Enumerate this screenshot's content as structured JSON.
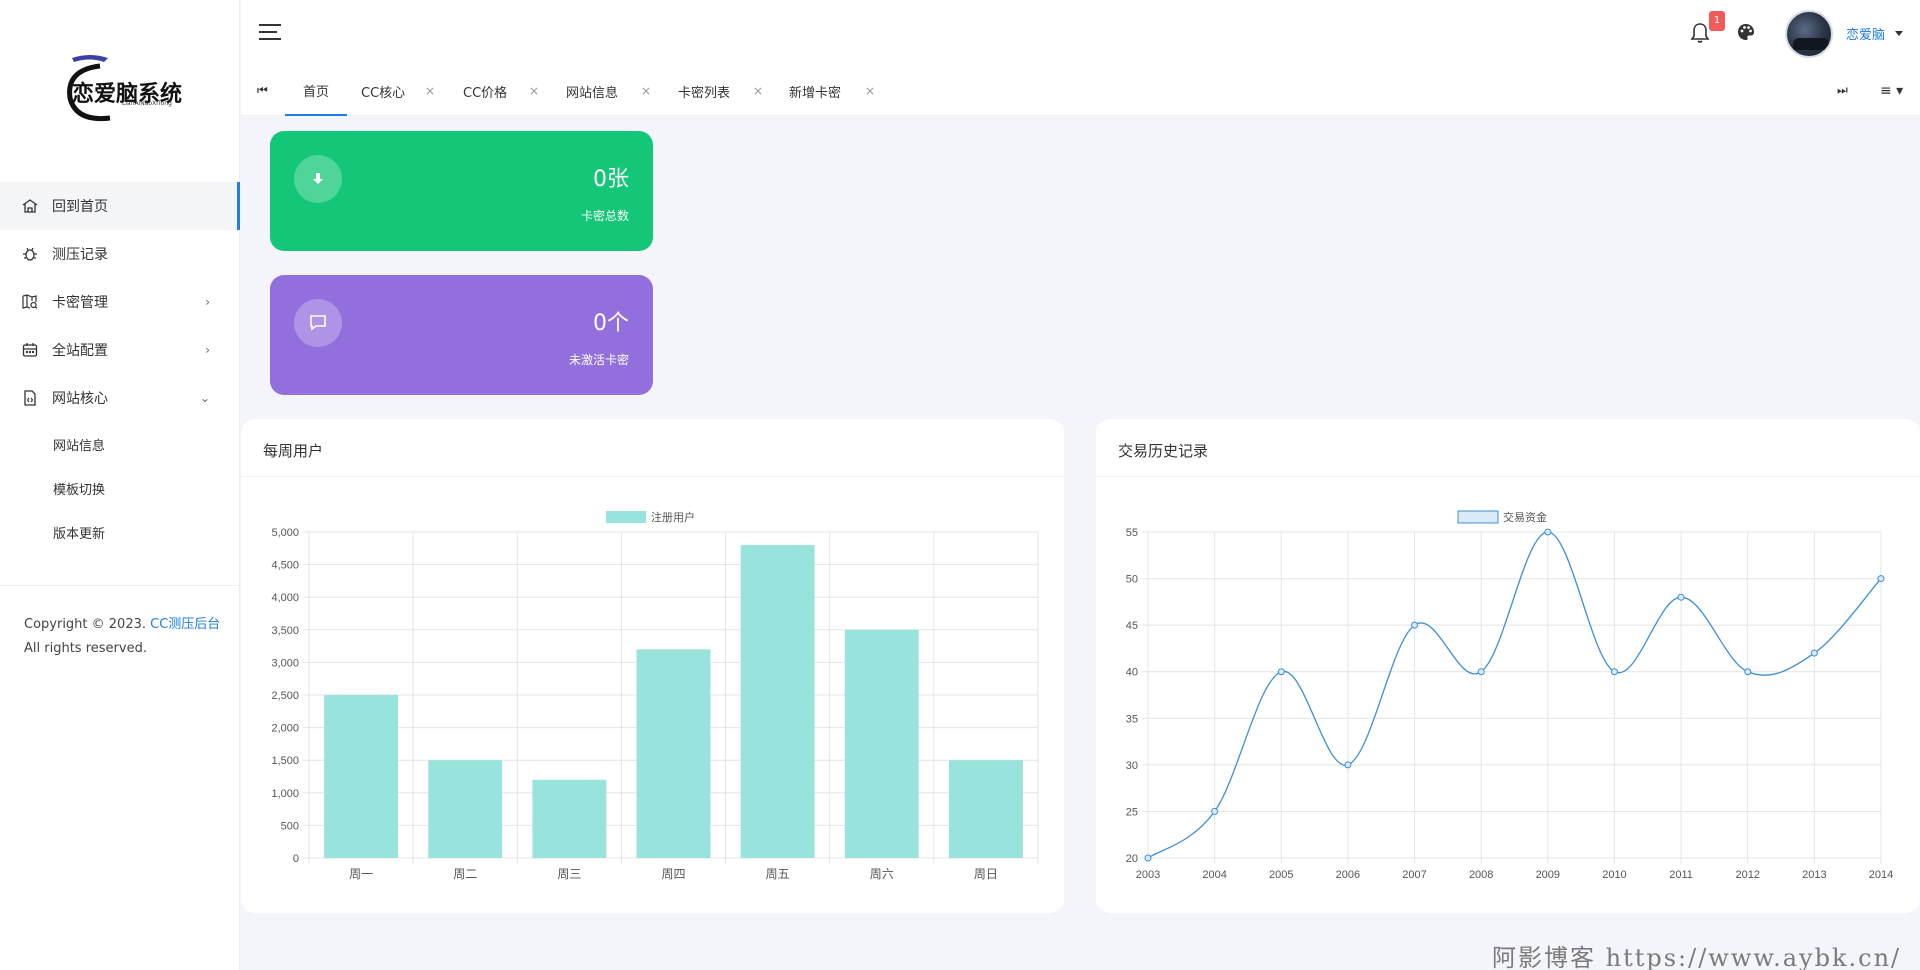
{
  "logo": {
    "text": "恋爱脑系统",
    "sub": "LianAiNaoXiTong"
  },
  "sidebar": {
    "items": [
      {
        "label": "回到首页",
        "icon": "home-icon",
        "active": true
      },
      {
        "label": "测压记录",
        "icon": "bug-icon"
      },
      {
        "label": "卡密管理",
        "icon": "map-search-icon",
        "arrow": "›"
      },
      {
        "label": "全站配置",
        "icon": "calendar-icon",
        "arrow": "›"
      },
      {
        "label": "网站核心",
        "icon": "file-code-icon",
        "arrow": "⌄"
      }
    ],
    "subitems": [
      {
        "label": "网站信息"
      },
      {
        "label": "模板切换"
      },
      {
        "label": "版本更新"
      }
    ],
    "copyright": {
      "prefix": "Copyright © 2023.",
      "link": "CC测压后台",
      "line2": "All rights reserved."
    }
  },
  "header": {
    "notification_count": "1",
    "username": "恋爱脑"
  },
  "tabs": {
    "first_btn": "⏮",
    "last_btn": "⏭",
    "menu_btn": "≡ ▾",
    "items": [
      {
        "label": "首页",
        "active": true
      },
      {
        "label": "CC核心",
        "close": "×"
      },
      {
        "label": "CC价格",
        "close": "×"
      },
      {
        "label": "网站信息",
        "close": "×"
      },
      {
        "label": "卡密列表",
        "close": "×"
      },
      {
        "label": "新增卡密",
        "close": "×"
      }
    ]
  },
  "stats": [
    {
      "value": "0张",
      "label": "卡密总数",
      "icon": "download-icon",
      "color": "#14c677"
    },
    {
      "value": "0个",
      "label": "未激活卡密",
      "icon": "message-icon",
      "color": "#936fde"
    }
  ],
  "cards": {
    "weekly_title": "每周用户",
    "history_title": "交易历史记录"
  },
  "chart_data": [
    {
      "type": "bar",
      "title": "",
      "categories": [
        "周一",
        "周二",
        "周三",
        "周四",
        "周五",
        "周六",
        "周日"
      ],
      "series": [
        {
          "name": "注册用户",
          "values": [
            2500,
            1500,
            1200,
            3200,
            4800,
            3500,
            1500
          ],
          "color": "#98e3dc"
        }
      ],
      "ylim": [
        0,
        5000
      ],
      "yticks": [
        "0",
        "500",
        "1,000",
        "1,500",
        "2,000",
        "2,500",
        "3,000",
        "3,500",
        "4,000",
        "4,500",
        "5,000"
      ],
      "grid": true,
      "legend": "top-center"
    },
    {
      "type": "line",
      "title": "",
      "x": [
        "2003",
        "2004",
        "2005",
        "2006",
        "2007",
        "2008",
        "2009",
        "2010",
        "2011",
        "2012",
        "2013",
        "2014"
      ],
      "series": [
        {
          "name": "交易资金",
          "values": [
            20,
            25,
            40,
            30,
            45,
            40,
            55,
            40,
            48,
            40,
            42,
            50
          ],
          "color": "#3c8fd6"
        }
      ],
      "ylim": [
        20,
        55
      ],
      "yticks": [
        "20",
        "25",
        "30",
        "35",
        "40",
        "45",
        "50",
        "55"
      ],
      "grid": true,
      "legend": "top-center"
    }
  ],
  "watermark": "阿影博客 https://www.aybk.cn/"
}
